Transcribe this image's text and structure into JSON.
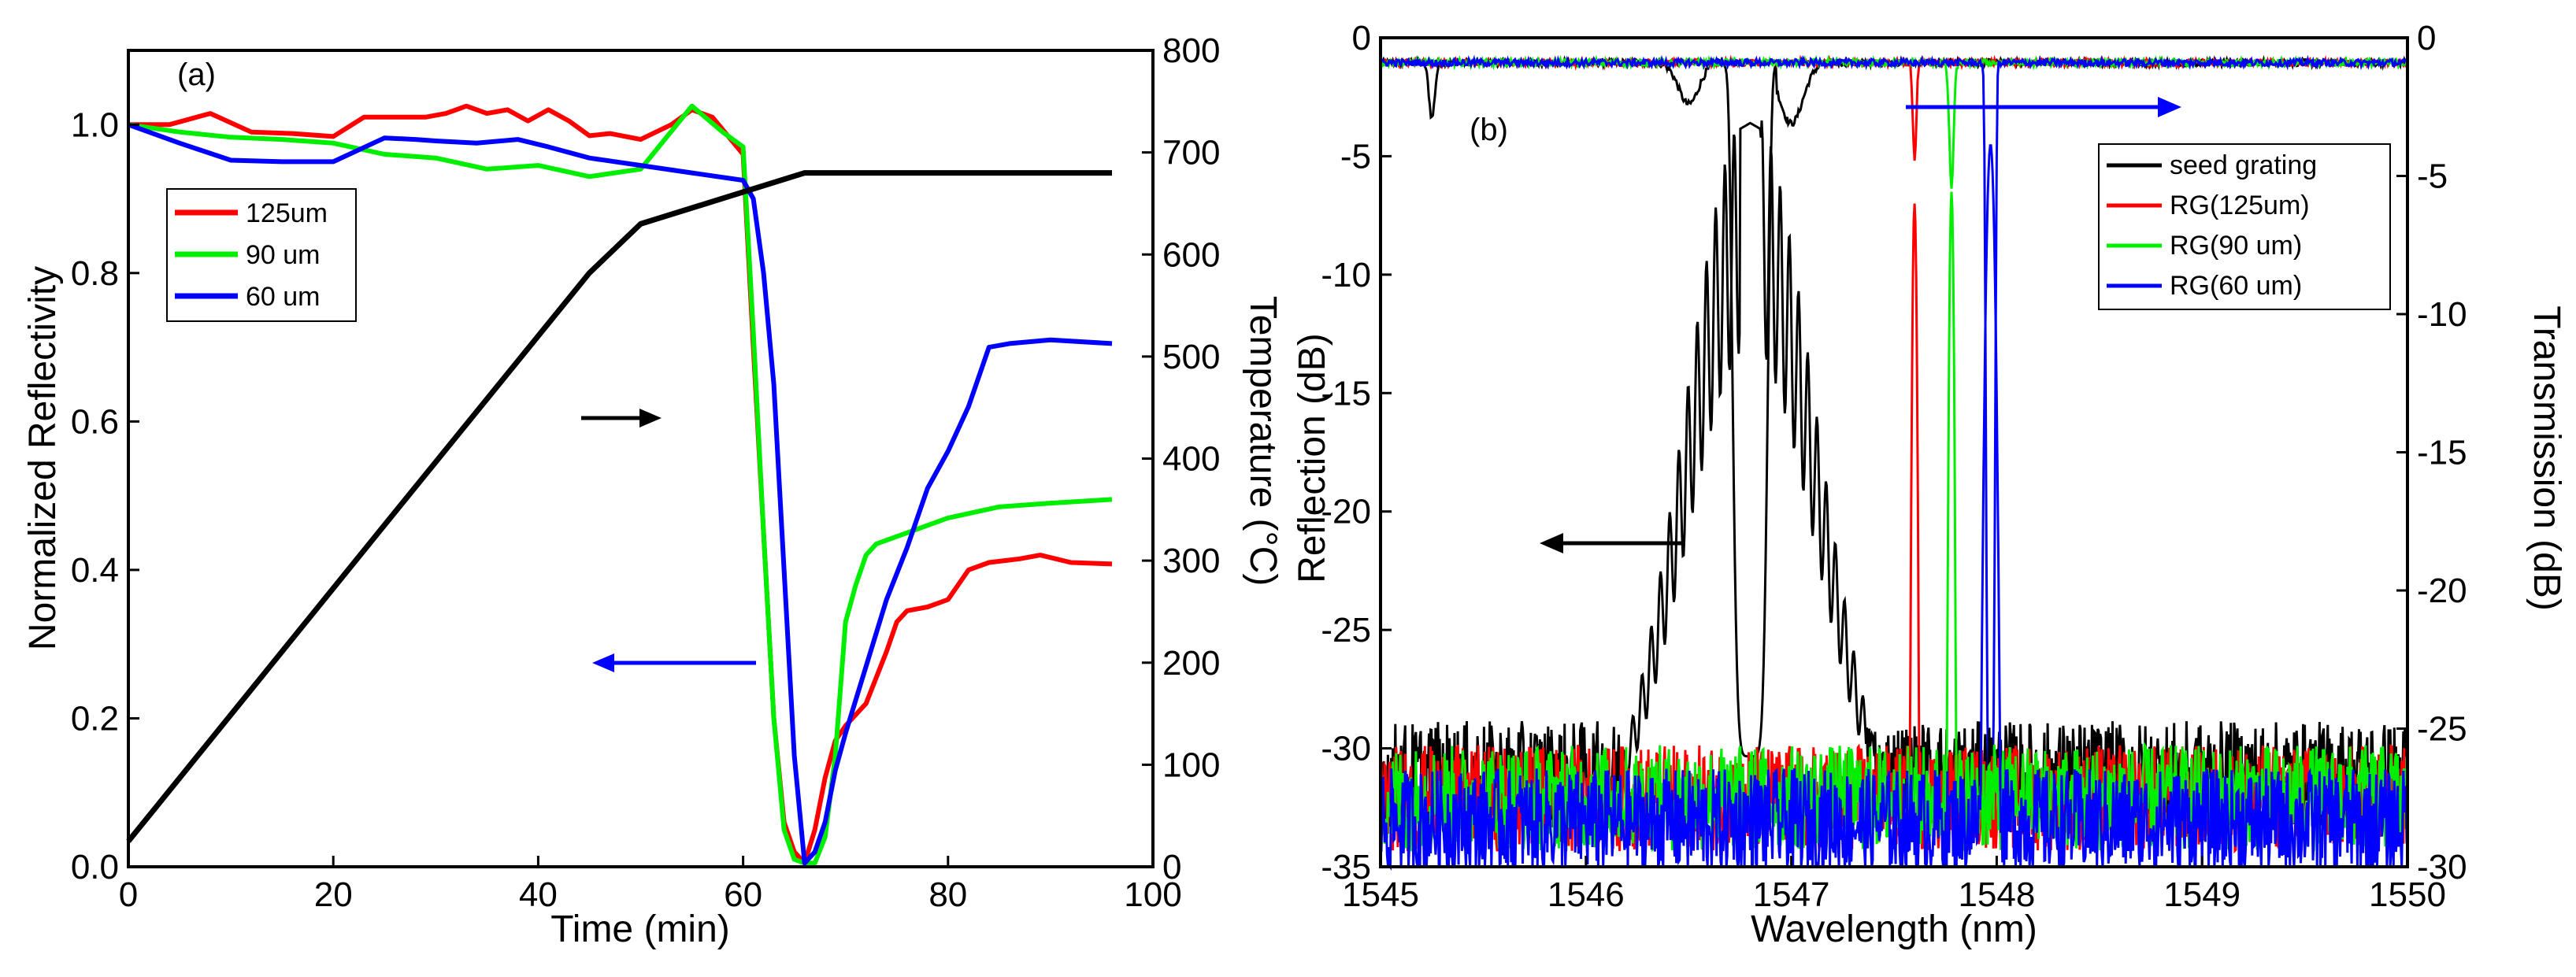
{
  "colors": {
    "axis": "#000000",
    "red": "#ff0000",
    "green": "#00ee00",
    "blue": "#0000ff",
    "black": "#000000"
  },
  "chart_data": [
    {
      "type": "line",
      "panel_label": "(a)",
      "xlabel": "Time (min)",
      "ylabel": "Normalized Reflectivity",
      "y2label": "Temperature (°C)",
      "xlim": [
        0,
        100
      ],
      "ylim": [
        0,
        1.1
      ],
      "y2lim": [
        0,
        800
      ],
      "xticks": [
        "0",
        "20",
        "40",
        "60",
        "80",
        "100"
      ],
      "yticks": [
        "0.0",
        "0.2",
        "0.4",
        "0.6",
        "0.8",
        "1.0"
      ],
      "y2ticks": [
        "0",
        "100",
        "200",
        "300",
        "400",
        "500",
        "600",
        "700",
        "800"
      ],
      "legend": [
        "125um",
        "90 um",
        "60 um"
      ],
      "series": [
        {
          "name": "125um",
          "color": "red",
          "axis": "left",
          "x": [
            0,
            4,
            8,
            12,
            16,
            20,
            23,
            26,
            29,
            31,
            33,
            35,
            37,
            39,
            41,
            43,
            45,
            47,
            50,
            53,
            55,
            57,
            60,
            61,
            62,
            63,
            64,
            65,
            66,
            67,
            68,
            69,
            70,
            72,
            74,
            75,
            76,
            78,
            80,
            82,
            84,
            87,
            89,
            92,
            96
          ],
          "y": [
            1.0,
            1.0,
            1.015,
            0.99,
            0.988,
            0.984,
            1.01,
            1.01,
            1.01,
            1.015,
            1.025,
            1.015,
            1.02,
            1.005,
            1.02,
            1.005,
            0.985,
            0.988,
            0.98,
            1.0,
            1.02,
            1.01,
            0.96,
            0.7,
            0.45,
            0.2,
            0.06,
            0.02,
            0.005,
            0.05,
            0.12,
            0.17,
            0.19,
            0.22,
            0.29,
            0.33,
            0.345,
            0.35,
            0.36,
            0.4,
            0.41,
            0.415,
            0.42,
            0.41,
            0.408
          ]
        },
        {
          "name": "90 um",
          "color": "green",
          "axis": "left",
          "x": [
            0,
            5,
            10,
            15,
            20,
            25,
            30,
            35,
            40,
            45,
            50,
            55,
            58,
            60,
            61,
            62,
            63,
            64,
            65,
            66,
            67,
            68,
            69,
            70,
            71,
            72,
            73,
            74,
            76,
            78,
            80,
            85,
            90,
            96
          ],
          "y": [
            1.0,
            0.99,
            0.983,
            0.98,
            0.975,
            0.96,
            0.955,
            0.94,
            0.945,
            0.93,
            0.94,
            1.025,
            0.99,
            0.97,
            0.72,
            0.45,
            0.2,
            0.05,
            0.01,
            0.005,
            0.005,
            0.04,
            0.15,
            0.33,
            0.38,
            0.42,
            0.435,
            0.44,
            0.45,
            0.46,
            0.47,
            0.485,
            0.49,
            0.495
          ]
        },
        {
          "name": "60 um",
          "color": "blue",
          "axis": "left",
          "x": [
            0,
            5,
            10,
            15,
            20,
            25,
            28,
            30,
            34,
            38,
            41,
            45,
            50,
            55,
            60,
            61,
            62,
            63,
            64,
            65,
            66,
            67,
            68,
            69,
            70,
            72,
            74,
            76,
            78,
            80,
            82,
            84,
            86,
            90,
            96
          ],
          "y": [
            1.0,
            0.975,
            0.952,
            0.95,
            0.95,
            0.982,
            0.98,
            0.978,
            0.975,
            0.98,
            0.97,
            0.955,
            0.945,
            0.935,
            0.925,
            0.9,
            0.8,
            0.65,
            0.4,
            0.15,
            0.005,
            0.02,
            0.06,
            0.13,
            0.18,
            0.27,
            0.36,
            0.43,
            0.51,
            0.56,
            0.62,
            0.7,
            0.705,
            0.71,
            0.705
          ]
        },
        {
          "name": "Temperature",
          "color": "black",
          "axis": "right",
          "x": [
            0,
            25,
            45,
            50,
            66,
            96
          ],
          "y": [
            25,
            335,
            582,
            630,
            680,
            680
          ]
        }
      ],
      "annotations": [
        "black arrow pointing right toward Temperature axis",
        "blue arrow pointing left toward Reflectivity axis"
      ]
    },
    {
      "type": "line",
      "panel_label": "(b)",
      "xlabel": "Wavelength (nm)",
      "ylabel": "Reflection (dB)",
      "y2label": "Transmission (dB)",
      "xlim": [
        1545,
        1550
      ],
      "ylim": [
        -35,
        0
      ],
      "y2lim": [
        -30,
        0
      ],
      "xticks": [
        "1545",
        "1546",
        "1547",
        "1548",
        "1549",
        "1550"
      ],
      "yticks": [
        "0",
        "-5",
        "-10",
        "-15",
        "-20",
        "-25",
        "-30",
        "-35"
      ],
      "y2ticks": [
        "0",
        "-5",
        "-10",
        "-15",
        "-20",
        "-25",
        "-30"
      ],
      "legend": [
        "seed grating",
        "RG(125um)",
        "RG(90 um)",
        "RG(60 um)"
      ],
      "series": [
        {
          "name": "seed grating",
          "color": "black",
          "center_nm": 1546.8,
          "peak_dB": -3.6,
          "noise_floor_dB": -32
        },
        {
          "name": "RG(125um)",
          "color": "red",
          "center_nm": 1547.6,
          "peak_dB": -7.0,
          "noise_floor_dB": -33
        },
        {
          "name": "RG(90 um)",
          "color": "green",
          "center_nm": 1547.78,
          "peak_dB": -6.5,
          "noise_floor_dB": -33
        },
        {
          "name": "RG(60 um)",
          "color": "blue",
          "center_nm": 1547.97,
          "peak_dB": -4.5,
          "noise_floor_dB": -34
        }
      ],
      "annotations": [
        "black arrow pointing left toward Reflection axis",
        "blue arrow pointing right toward Transmission axis"
      ]
    }
  ]
}
